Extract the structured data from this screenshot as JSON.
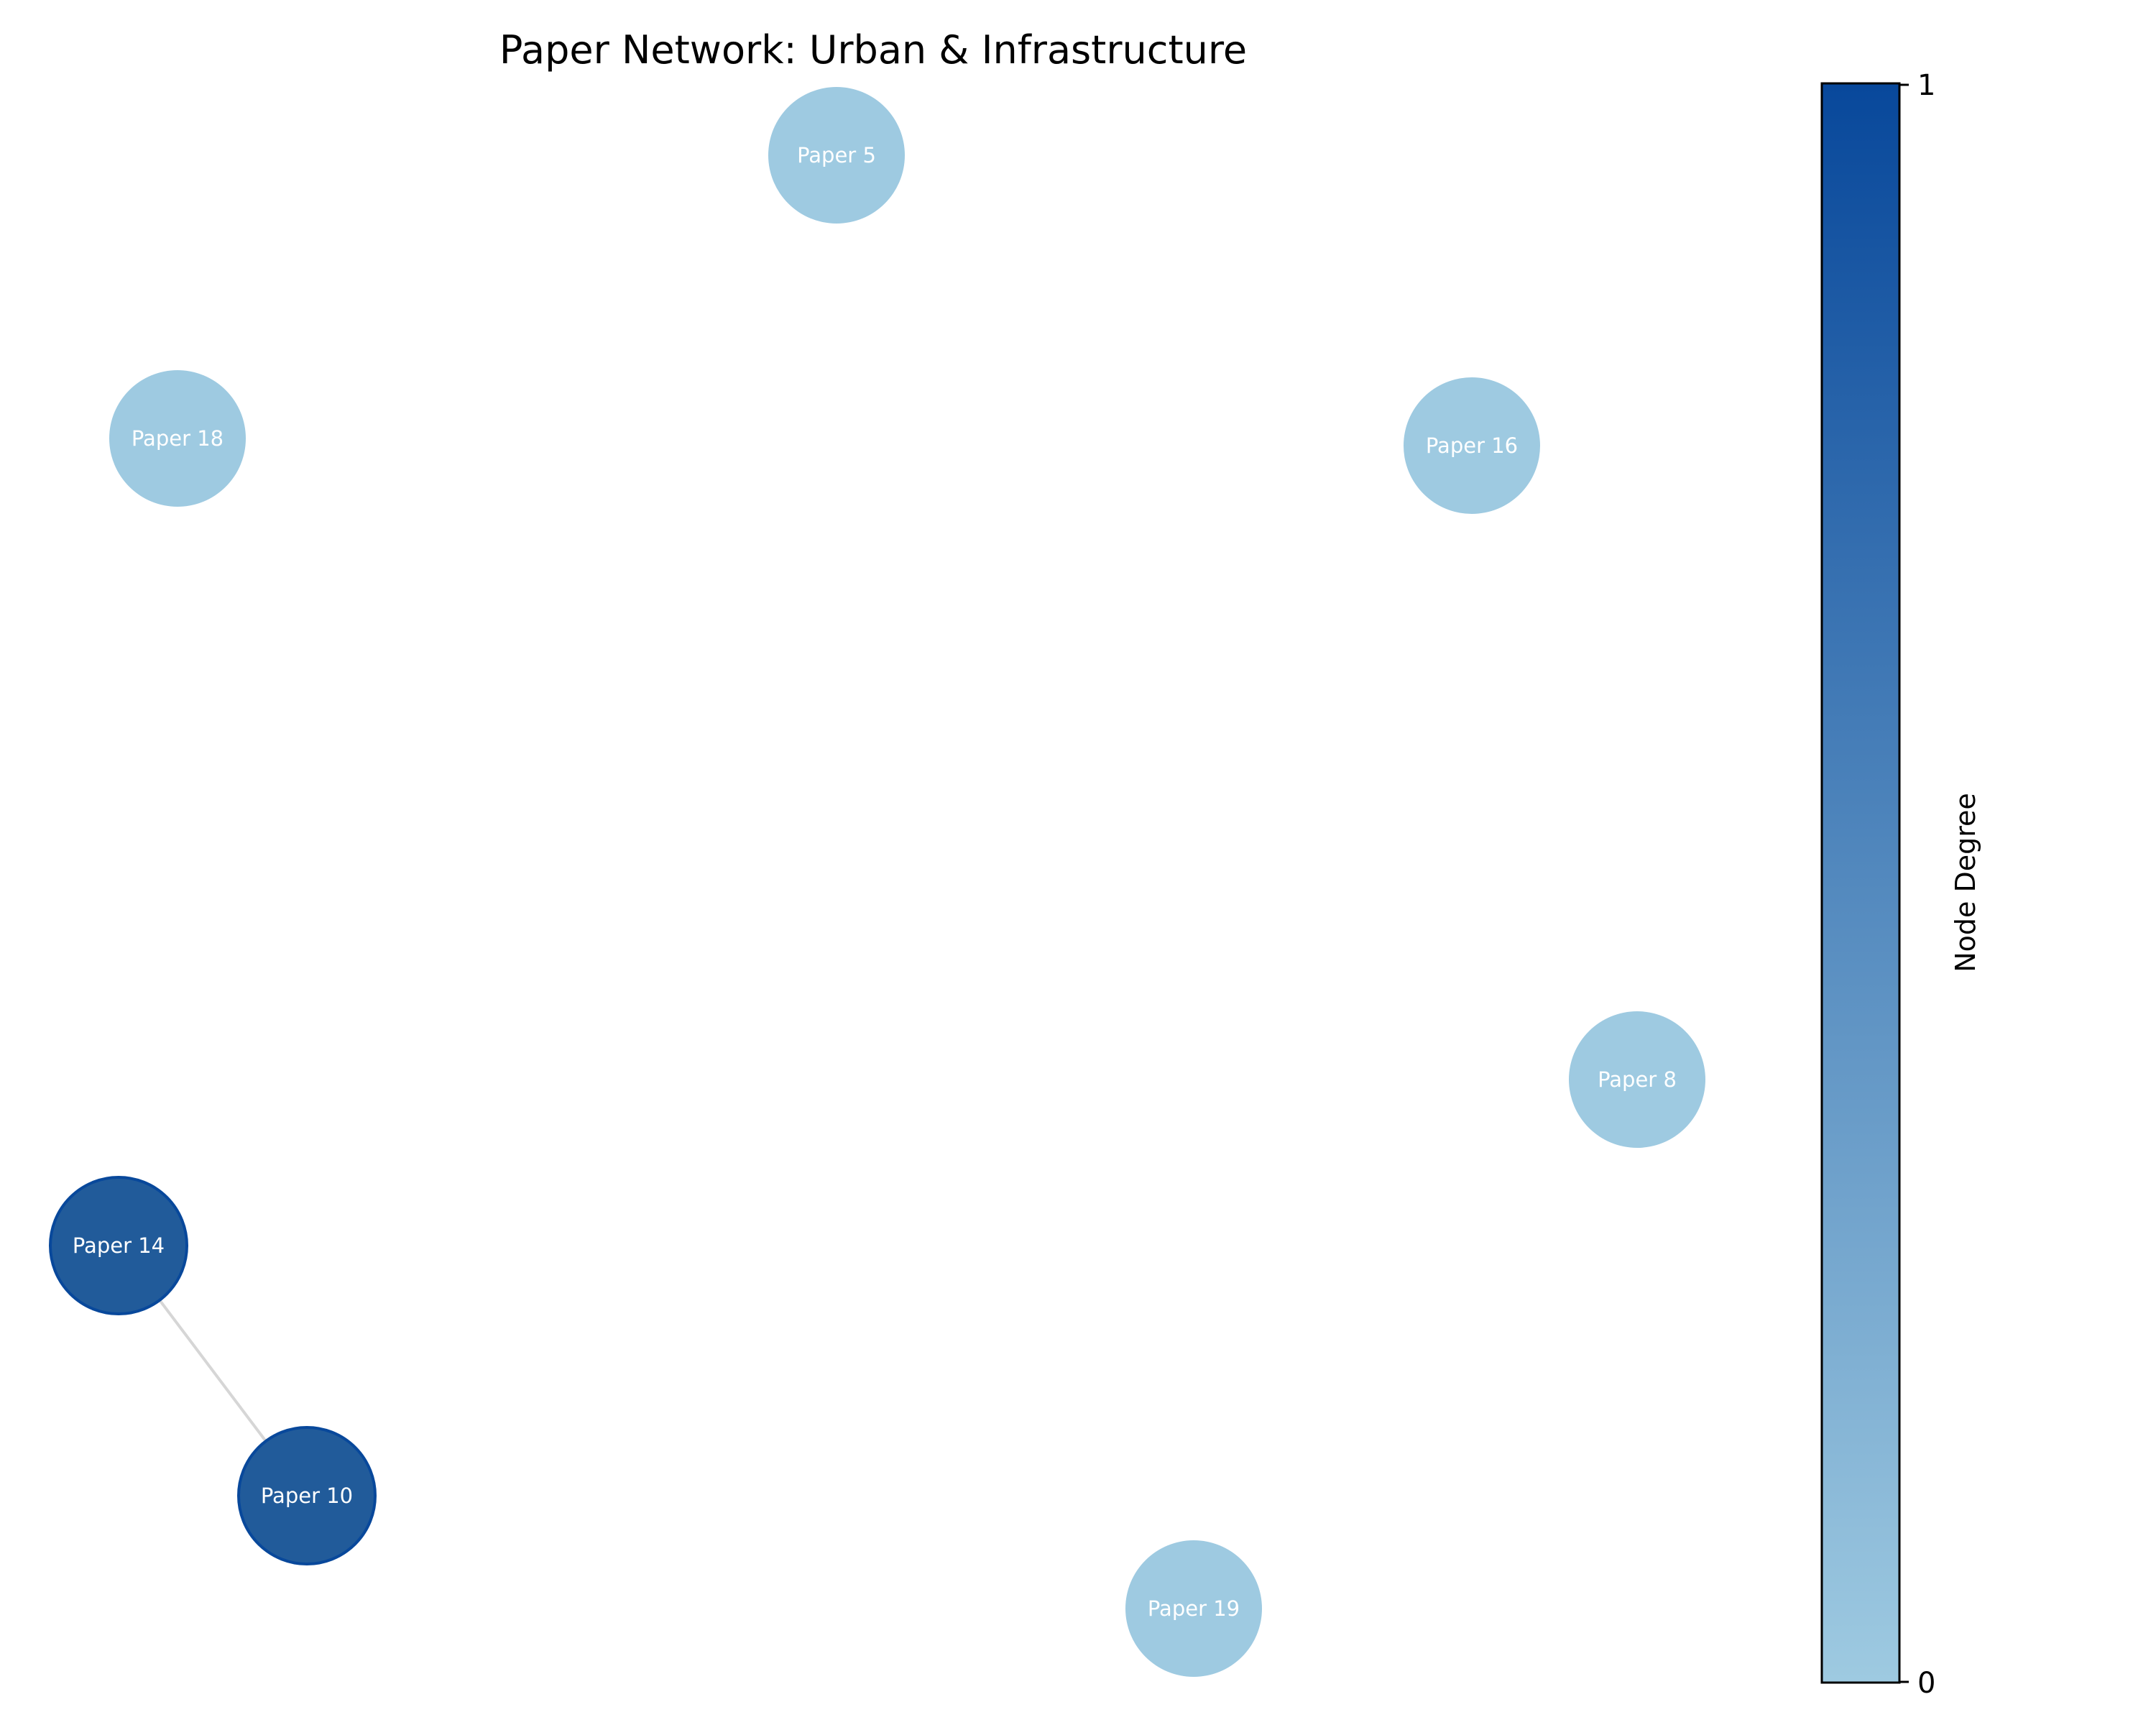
{
  "title": "Paper Network: Urban & Infrastructure",
  "nodes": [
    {
      "id": "p5",
      "label": "Paper 5",
      "degree": 0
    },
    {
      "id": "p18",
      "label": "Paper 18",
      "degree": 0
    },
    {
      "id": "p16",
      "label": "Paper 16",
      "degree": 0
    },
    {
      "id": "p8",
      "label": "Paper 8",
      "degree": 0
    },
    {
      "id": "p14",
      "label": "Paper 14",
      "degree": 1
    },
    {
      "id": "p10",
      "label": "Paper 10",
      "degree": 1
    },
    {
      "id": "p19",
      "label": "Paper 19",
      "degree": 0
    }
  ],
  "edges": [
    {
      "source": "p14",
      "target": "p10"
    }
  ],
  "colorbar": {
    "label": "Node Degree",
    "min_label": "0",
    "max_label": "1",
    "color_low": "#9ecae1",
    "color_high": "#08489b"
  },
  "colors": {
    "node_low": "#9ecae1",
    "node_high": "#215b9a",
    "node_high_outline": "#08489b",
    "edge": "#d6d6d6"
  }
}
